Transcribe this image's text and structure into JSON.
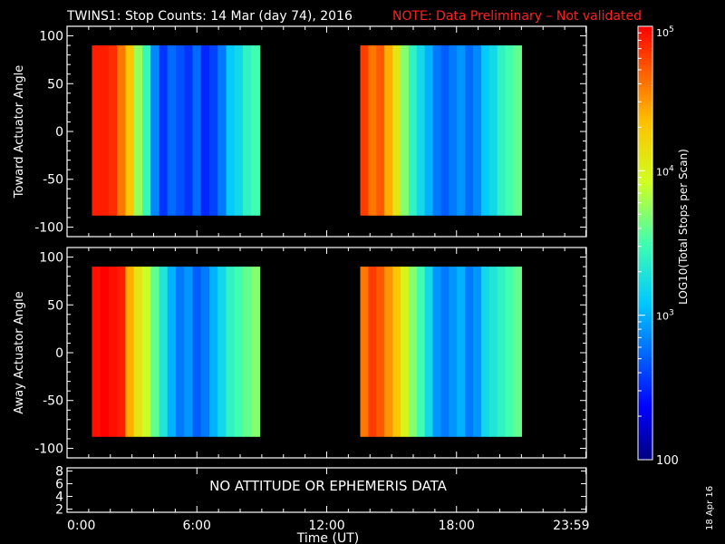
{
  "header": {
    "title": "TWINS1: Stop Counts: 14 Mar (day  74), 2016",
    "note": "NOTE: Data Preliminary – Not validated",
    "note_color": "#ff2020"
  },
  "panels": {
    "toward": {
      "ylabel": "Toward Actuator Angle"
    },
    "away": {
      "ylabel": "Away Actuator Angle"
    },
    "ephemeris": {
      "message": "NO ATTITUDE OR EPHEMERIS DATA"
    }
  },
  "x_axis": {
    "label": "Time (UT)"
  },
  "colorbar": {
    "label": "LOG10(Total Stops per Scan)",
    "min_label": "100"
  },
  "footer": {
    "date_stamp": "18 Apr 16"
  },
  "chart_data": [
    {
      "type": "heatmap",
      "name": "toward",
      "title": "TWINS1: Stop Counts: 14 Mar (day  74), 2016",
      "xlabel": "Time (UT)",
      "ylabel": "Toward Actuator Angle",
      "xlim": [
        0,
        24
      ],
      "ylim": [
        -110,
        110
      ],
      "x_ticks": [
        "0:00",
        "6:00",
        "12:00",
        "18:00",
        "23:59"
      ],
      "x_tick_values": [
        0,
        6,
        12,
        18,
        23.98
      ],
      "y_ticks": [
        -100,
        -50,
        0,
        50,
        100
      ],
      "z_range_log10": [
        2,
        5
      ],
      "data_angle_range": [
        -88,
        90
      ],
      "intervals": [
        {
          "start_h": 1.15,
          "end_h": 8.9,
          "log_counts": [
            4.9,
            4.9,
            4.85,
            4.6,
            4.3,
            3.75,
            3.45,
            2.85,
            2.55,
            2.75,
            2.65,
            2.55,
            2.75,
            2.5,
            2.6,
            2.8,
            3.1,
            3.2,
            3.4,
            3.5
          ]
        },
        {
          "start_h": 13.55,
          "end_h": 21.0,
          "log_counts": [
            4.8,
            4.6,
            4.7,
            4.4,
            4.1,
            3.7,
            3.4,
            3.2,
            3.0,
            2.8,
            2.7,
            2.8,
            2.9,
            2.75,
            2.85,
            3.1,
            3.2,
            3.4,
            3.5,
            3.6
          ]
        }
      ]
    },
    {
      "type": "heatmap",
      "name": "away",
      "ylabel": "Away Actuator Angle",
      "xlim": [
        0,
        24
      ],
      "ylim": [
        -110,
        110
      ],
      "x_ticks": [
        "0:00",
        "6:00",
        "12:00",
        "18:00",
        "23:59"
      ],
      "y_ticks": [
        -100,
        -50,
        0,
        50,
        100
      ],
      "z_range_log10": [
        2,
        5
      ],
      "data_angle_range": [
        -88,
        90
      ],
      "intervals": [
        {
          "start_h": 1.15,
          "end_h": 8.9,
          "log_counts": [
            4.95,
            5.0,
            4.95,
            4.9,
            4.4,
            4.1,
            3.9,
            3.6,
            3.3,
            3.0,
            2.8,
            2.9,
            2.7,
            2.8,
            3.0,
            3.2,
            3.4,
            3.5,
            3.6,
            3.7
          ]
        },
        {
          "start_h": 13.55,
          "end_h": 21.0,
          "log_counts": [
            4.6,
            4.8,
            4.7,
            4.5,
            4.3,
            4.0,
            3.7,
            3.5,
            3.2,
            2.9,
            2.8,
            2.9,
            3.0,
            2.8,
            2.9,
            3.2,
            3.3,
            3.4,
            3.5,
            3.6
          ]
        }
      ]
    },
    {
      "type": "line",
      "name": "ephemeris",
      "xlim": [
        0,
        24
      ],
      "ylim": [
        1.5,
        8.5
      ],
      "y_ticks": [
        2,
        4,
        6,
        8
      ],
      "series": []
    },
    {
      "type": "heatmap",
      "name": "colorbar",
      "z_range_log10": [
        2,
        5
      ],
      "tick_labels": [
        "100",
        "10^3",
        "10^4",
        "10^5"
      ],
      "tick_values_log10": [
        2,
        3,
        4,
        5
      ]
    }
  ]
}
